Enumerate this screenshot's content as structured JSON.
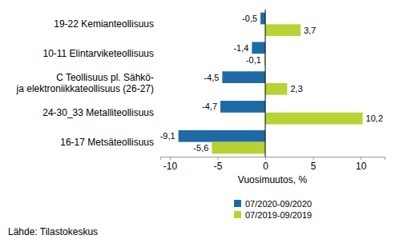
{
  "chart_data": {
    "type": "bar",
    "orientation": "horizontal",
    "categories": [
      "19-22 Kemianteollisuus",
      "10-11 Elintarviketeollisuus",
      "C Teollisuus pl. Sähkö-\nja elektroniikkateollisuus (26-27)",
      "24-30_33 Metalliteollisuus",
      "16-17 Metsäteollisuus"
    ],
    "series": [
      {
        "name": "07/2020-09/2020",
        "color": "#1f6aa5",
        "values": [
          -0.5,
          -1.4,
          -4.5,
          -4.7,
          -9.1
        ],
        "value_labels": [
          "-0,5",
          "-1,4",
          "-4,5",
          "-4,7",
          "-9,1"
        ]
      },
      {
        "name": "07/2019-09/2019",
        "color": "#b5d334",
        "values": [
          3.7,
          -0.1,
          2.3,
          10.2,
          -5.6
        ],
        "value_labels": [
          "3,7",
          "-0,1",
          "2,3",
          "10,2",
          "-5,6"
        ]
      }
    ],
    "x_label": "Vuosimuutos, %",
    "xlim": [
      -11,
      12.5
    ],
    "xticks": [
      -10,
      -5,
      0,
      5,
      10
    ],
    "data_labels": true,
    "grid": false,
    "legend": "bottom",
    "source": "Lähde: Tilastokeskus"
  }
}
